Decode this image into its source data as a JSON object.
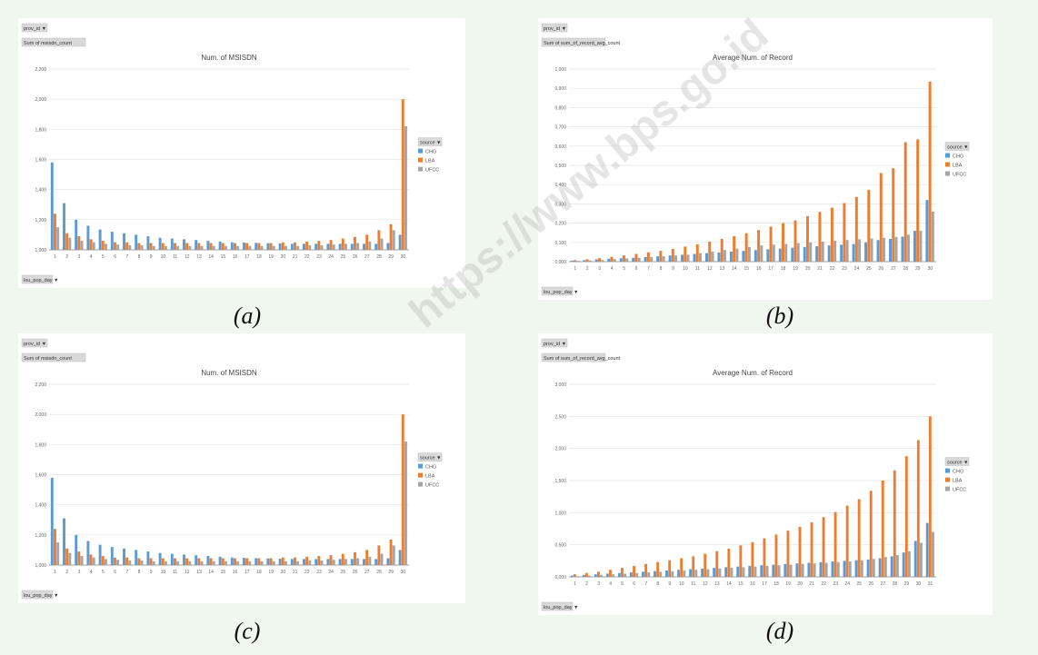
{
  "captions": [
    "(a)",
    "(b)",
    "(c)",
    "(d)"
  ],
  "watermark": "https://www.bps.go.id",
  "colors": {
    "CHG": "#5b9bd5",
    "LBA": "#ed7d31",
    "UFCC": "#a5a5a5",
    "grid": "#e4e4e4",
    "axis": "#888888"
  },
  "chart_data": [
    {
      "type": "bar",
      "title": "Num. of MSISDN",
      "filter_label": "prov_id ▼",
      "field_label": "Sum of msisdn_count",
      "axis_field_label": "lou_pop_day ▼",
      "legend_title": "source ▼",
      "legend_position": "right",
      "categories": [
        "1",
        "2",
        "3",
        "4",
        "5",
        "6",
        "7",
        "8",
        "9",
        "10",
        "11",
        "12",
        "13",
        "14",
        "15",
        "16",
        "17",
        "18",
        "19",
        "20",
        "21",
        "22",
        "23",
        "24",
        "25",
        "26",
        "27",
        "28",
        "29",
        "30"
      ],
      "yticks": [
        "1,000",
        "1,200",
        "1,400",
        "1,600",
        "1,800",
        "2,000",
        "2,200"
      ],
      "ylim": [
        1000,
        2200
      ],
      "grid": true,
      "series": [
        {
          "name": "CHG",
          "values": [
            1580,
            1310,
            1200,
            1160,
            1135,
            1120,
            1110,
            1100,
            1090,
            1080,
            1075,
            1070,
            1065,
            1060,
            1055,
            1050,
            1048,
            1046,
            1044,
            1042,
            1040,
            1040,
            1040,
            1040,
            1040,
            1040,
            1040,
            1040,
            1045,
            1100
          ]
        },
        {
          "name": "LBA",
          "values": [
            1240,
            1110,
            1090,
            1070,
            1060,
            1050,
            1050,
            1045,
            1045,
            1045,
            1045,
            1045,
            1045,
            1045,
            1045,
            1045,
            1045,
            1045,
            1045,
            1050,
            1050,
            1055,
            1060,
            1065,
            1075,
            1085,
            1100,
            1130,
            1170,
            2000
          ]
        },
        {
          "name": "UFCC",
          "values": [
            1150,
            1080,
            1060,
            1050,
            1040,
            1035,
            1030,
            1030,
            1025,
            1025,
            1025,
            1025,
            1025,
            1025,
            1025,
            1025,
            1025,
            1025,
            1025,
            1025,
            1025,
            1030,
            1030,
            1035,
            1040,
            1045,
            1055,
            1075,
            1130,
            1820
          ]
        }
      ]
    },
    {
      "type": "bar",
      "title": "Average Num. of Record",
      "filter_label": "prov_id ▼",
      "field_label": "Sum of sum_of_record_avg_count",
      "axis_field_label": "lou_pop_day ▼",
      "legend_title": "source ▼",
      "legend_position": "right",
      "categories": [
        "1",
        "2",
        "3",
        "4",
        "5",
        "6",
        "7",
        "8",
        "9",
        "10",
        "11",
        "12",
        "13",
        "14",
        "15",
        "16",
        "17",
        "18",
        "19",
        "20",
        "21",
        "22",
        "23",
        "24",
        "25",
        "26",
        "27",
        "28",
        "29",
        "30"
      ],
      "yticks": [
        "0,000",
        "0,100",
        "0,200",
        "0,300",
        "0,400",
        "0,500",
        "0,600",
        "0,700",
        "0,800",
        "0,900",
        "1,000"
      ],
      "ylim": [
        0,
        1000
      ],
      "grid": true,
      "series": [
        {
          "name": "CHG",
          "values": [
            5,
            8,
            12,
            15,
            18,
            20,
            24,
            28,
            32,
            36,
            40,
            44,
            48,
            52,
            56,
            60,
            64,
            68,
            72,
            76,
            80,
            84,
            88,
            92,
            100,
            112,
            118,
            130,
            160,
            320
          ]
        },
        {
          "name": "LBA",
          "values": [
            8,
            12,
            18,
            25,
            32,
            40,
            48,
            56,
            66,
            78,
            90,
            104,
            118,
            132,
            148,
            164,
            182,
            200,
            214,
            236,
            258,
            280,
            304,
            336,
            372,
            460,
            485,
            620,
            635,
            935
          ]
        },
        {
          "name": "UFCC",
          "values": [
            4,
            6,
            9,
            13,
            17,
            20,
            24,
            28,
            32,
            36,
            44,
            52,
            60,
            68,
            76,
            84,
            88,
            92,
            96,
            100,
            104,
            108,
            112,
            116,
            120,
            124,
            128,
            140,
            160,
            260
          ]
        }
      ]
    },
    {
      "type": "bar",
      "title": "Num. of MSISDN",
      "filter_label": "prov_id ▼",
      "field_label": "Sum of msisdn_count",
      "axis_field_label": "lou_pop_day ▼",
      "legend_title": "source ▼",
      "legend_position": "right",
      "categories": [
        "1",
        "2",
        "3",
        "4",
        "5",
        "6",
        "7",
        "8",
        "9",
        "10",
        "11",
        "12",
        "13",
        "14",
        "15",
        "16",
        "17",
        "18",
        "19",
        "20",
        "21",
        "22",
        "23",
        "24",
        "25",
        "26",
        "27",
        "28",
        "29",
        "30"
      ],
      "yticks": [
        "1,000",
        "1,200",
        "1,400",
        "1,600",
        "1,800",
        "2,000",
        "2,200"
      ],
      "ylim": [
        1000,
        2200
      ],
      "grid": true,
      "series": [
        {
          "name": "CHG",
          "values": [
            1580,
            1310,
            1200,
            1160,
            1135,
            1120,
            1110,
            1100,
            1090,
            1080,
            1075,
            1070,
            1065,
            1060,
            1055,
            1050,
            1048,
            1046,
            1044,
            1042,
            1040,
            1040,
            1040,
            1040,
            1040,
            1040,
            1040,
            1040,
            1045,
            1100
          ]
        },
        {
          "name": "LBA",
          "values": [
            1240,
            1110,
            1090,
            1070,
            1060,
            1050,
            1050,
            1045,
            1045,
            1045,
            1045,
            1045,
            1045,
            1045,
            1045,
            1045,
            1045,
            1045,
            1045,
            1050,
            1050,
            1055,
            1060,
            1065,
            1075,
            1085,
            1100,
            1130,
            1170,
            2000
          ]
        },
        {
          "name": "UFCC",
          "values": [
            1150,
            1080,
            1060,
            1050,
            1040,
            1035,
            1030,
            1030,
            1025,
            1025,
            1025,
            1025,
            1025,
            1025,
            1025,
            1025,
            1025,
            1025,
            1025,
            1025,
            1025,
            1030,
            1030,
            1035,
            1040,
            1045,
            1055,
            1075,
            1130,
            1820
          ]
        }
      ]
    },
    {
      "type": "bar",
      "title": "Average Num. of Record",
      "filter_label": "prov_id ▼",
      "field_label": "Sum of sum_of_record_avg_count",
      "axis_field_label": "lou_pop_day ▼",
      "legend_title": "source ▼",
      "legend_position": "right",
      "categories": [
        "1",
        "2",
        "3",
        "4",
        "5",
        "6",
        "7",
        "8",
        "9",
        "10",
        "11",
        "12",
        "13",
        "14",
        "15",
        "16",
        "17",
        "18",
        "19",
        "20",
        "21",
        "22",
        "23",
        "24",
        "25",
        "26",
        "27",
        "28",
        "29",
        "30",
        "31"
      ],
      "yticks": [
        "0,000",
        "0,500",
        "1,000",
        "1,500",
        "2,000",
        "2,500",
        "3,000"
      ],
      "ylim": [
        0,
        3000
      ],
      "grid": true,
      "series": [
        {
          "name": "CHG",
          "values": [
            20,
            30,
            40,
            50,
            60,
            70,
            80,
            90,
            100,
            110,
            120,
            130,
            140,
            150,
            160,
            170,
            180,
            190,
            200,
            210,
            220,
            230,
            240,
            250,
            260,
            270,
            290,
            320,
            380,
            560,
            840
          ]
        },
        {
          "name": "LBA",
          "values": [
            40,
            60,
            80,
            110,
            140,
            170,
            200,
            230,
            260,
            290,
            320,
            360,
            400,
            440,
            490,
            540,
            600,
            660,
            720,
            780,
            850,
            930,
            1010,
            1110,
            1210,
            1340,
            1500,
            1660,
            1880,
            2130,
            2500
          ]
        },
        {
          "name": "UFCC",
          "values": [
            10,
            20,
            30,
            40,
            50,
            60,
            70,
            80,
            90,
            100,
            110,
            120,
            130,
            140,
            150,
            160,
            170,
            180,
            190,
            200,
            210,
            220,
            230,
            240,
            260,
            280,
            310,
            340,
            400,
            530,
            700
          ]
        }
      ]
    }
  ]
}
